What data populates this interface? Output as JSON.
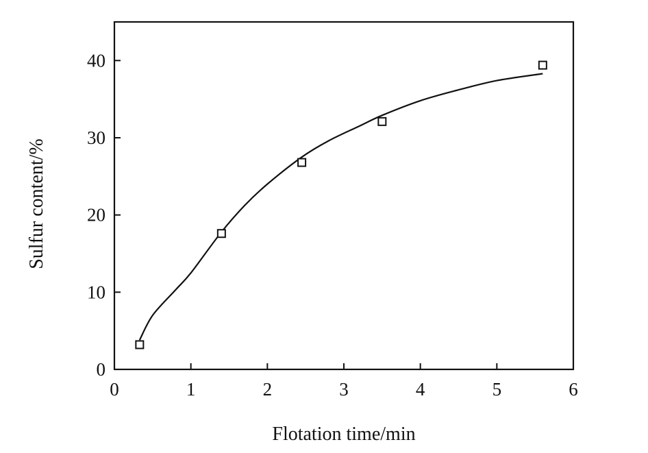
{
  "chart_data": {
    "type": "scatter",
    "title": "",
    "xlabel": "Flotation time/min",
    "ylabel": "Sulfur content/%",
    "xlim": [
      0,
      6
    ],
    "ylim": [
      0,
      45
    ],
    "xticks": [
      0,
      1,
      2,
      3,
      4,
      5,
      6
    ],
    "yticks": [
      0,
      10,
      20,
      30,
      40
    ],
    "grid": false,
    "legend": "none",
    "series": [
      {
        "kind": "points",
        "marker": "square",
        "x": [
          0.33,
          1.4,
          2.45,
          3.5,
          5.6
        ],
        "y": [
          3.2,
          17.6,
          26.8,
          32.1,
          39.4
        ]
      },
      {
        "kind": "line",
        "x": [
          0.33,
          0.5,
          0.8,
          1.0,
          1.4,
          1.7,
          2.0,
          2.45,
          2.8,
          3.2,
          3.5,
          4.0,
          4.5,
          5.0,
          5.6
        ],
        "y": [
          3.8,
          7.0,
          10.3,
          12.5,
          17.8,
          21.2,
          24.0,
          27.5,
          29.6,
          31.5,
          32.9,
          34.8,
          36.2,
          37.4,
          38.3
        ]
      }
    ]
  }
}
